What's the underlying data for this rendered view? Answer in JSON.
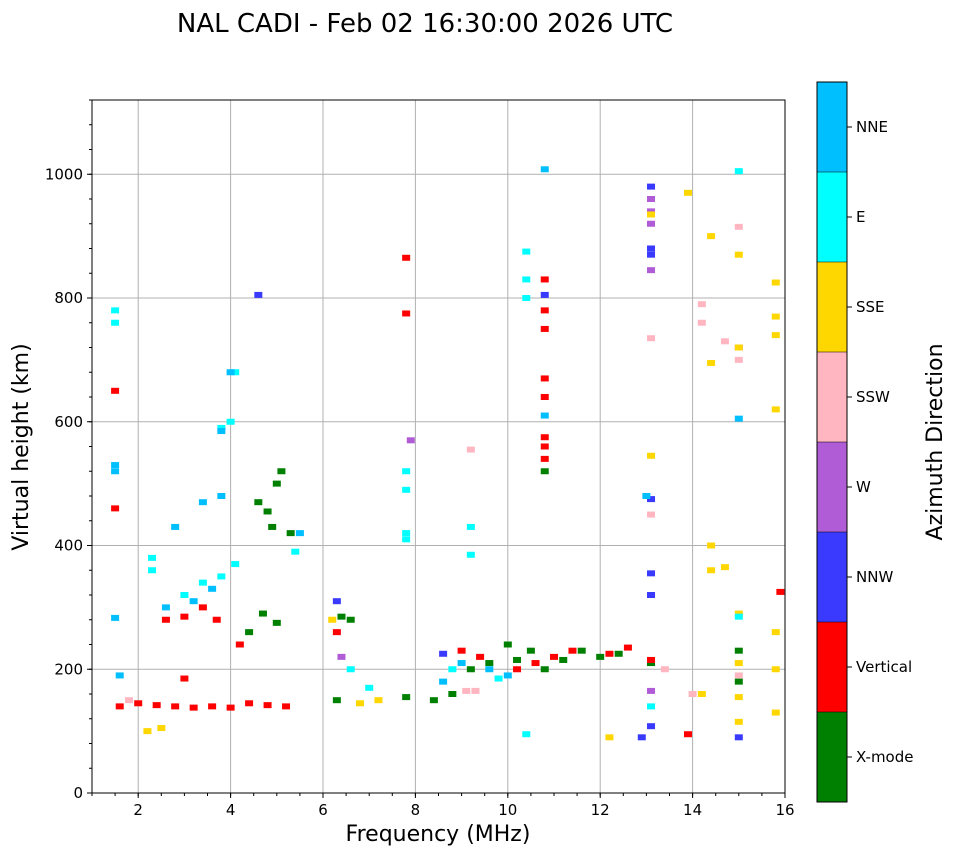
{
  "chart_data": {
    "type": "scatter",
    "title": "NAL CADI - Feb 02 16:30:00 2026 UTC",
    "xlabel": "Frequency (MHz)",
    "ylabel": "Virtual height (km)",
    "xlim": [
      1,
      16
    ],
    "ylim": [
      0,
      1120
    ],
    "xticks": [
      2,
      4,
      6,
      8,
      10,
      12,
      14,
      16
    ],
    "yticks": [
      0,
      200,
      400,
      600,
      800,
      1000
    ],
    "grid": true,
    "colorbar": {
      "label": "Azimuth Direction",
      "placement": "right",
      "categories": [
        {
          "name": "X-mode",
          "color": "#008000"
        },
        {
          "name": "Vertical",
          "color": "#ff0000"
        },
        {
          "name": "NNW",
          "color": "#3a3aff"
        },
        {
          "name": "W",
          "color": "#b05cd6"
        },
        {
          "name": "SSW",
          "color": "#ffb6c1"
        },
        {
          "name": "SSE",
          "color": "#ffd700"
        },
        {
          "name": "E",
          "color": "#00ffff"
        },
        {
          "name": "NNE",
          "color": "#00bfff"
        }
      ]
    },
    "series": [
      {
        "name": "X-mode",
        "points": [
          [
            4.6,
            470
          ],
          [
            4.8,
            455
          ],
          [
            5.0,
            500
          ],
          [
            5.1,
            520
          ],
          [
            5.3,
            420
          ],
          [
            4.9,
            430
          ],
          [
            4.4,
            260
          ],
          [
            4.7,
            290
          ],
          [
            5.0,
            275
          ],
          [
            6.4,
            285
          ],
          [
            6.6,
            280
          ],
          [
            8.4,
            150
          ],
          [
            8.8,
            160
          ],
          [
            9.2,
            200
          ],
          [
            9.6,
            210
          ],
          [
            10.0,
            240
          ],
          [
            10.2,
            215
          ],
          [
            10.5,
            230
          ],
          [
            10.8,
            200
          ],
          [
            11.2,
            215
          ],
          [
            11.6,
            230
          ],
          [
            12.0,
            220
          ],
          [
            12.4,
            225
          ],
          [
            6.3,
            150
          ],
          [
            7.8,
            155
          ],
          [
            10.8,
            520
          ],
          [
            15.0,
            230
          ],
          [
            15.0,
            180
          ],
          [
            13.1,
            210
          ]
        ]
      },
      {
        "name": "Vertical",
        "points": [
          [
            1.6,
            140
          ],
          [
            2.0,
            145
          ],
          [
            2.4,
            142
          ],
          [
            2.8,
            140
          ],
          [
            3.2,
            138
          ],
          [
            3.6,
            140
          ],
          [
            4.0,
            138
          ],
          [
            4.4,
            145
          ],
          [
            4.8,
            142
          ],
          [
            5.2,
            140
          ],
          [
            2.6,
            280
          ],
          [
            3.0,
            285
          ],
          [
            3.4,
            300
          ],
          [
            3.7,
            280
          ],
          [
            4.2,
            240
          ],
          [
            3.0,
            185
          ],
          [
            9.0,
            230
          ],
          [
            9.4,
            220
          ],
          [
            10.2,
            200
          ],
          [
            10.6,
            210
          ],
          [
            11.0,
            220
          ],
          [
            11.4,
            230
          ],
          [
            12.2,
            225
          ],
          [
            12.6,
            235
          ],
          [
            10.8,
            540
          ],
          [
            10.8,
            560
          ],
          [
            10.8,
            575
          ],
          [
            10.8,
            640
          ],
          [
            10.8,
            670
          ],
          [
            10.8,
            750
          ],
          [
            10.8,
            780
          ],
          [
            10.8,
            830
          ],
          [
            7.8,
            865
          ],
          [
            7.8,
            775
          ],
          [
            1.5,
            650
          ],
          [
            1.5,
            460
          ],
          [
            13.1,
            215
          ],
          [
            13.9,
            95
          ],
          [
            15.9,
            325
          ],
          [
            6.3,
            260
          ]
        ]
      },
      {
        "name": "NNW",
        "points": [
          [
            4.6,
            805
          ],
          [
            13.1,
            980
          ],
          [
            13.1,
            880
          ],
          [
            13.1,
            870
          ],
          [
            13.1,
            475
          ],
          [
            13.1,
            355
          ],
          [
            13.1,
            320
          ],
          [
            13.1,
            108
          ],
          [
            12.9,
            90
          ],
          [
            15.0,
            90
          ],
          [
            6.3,
            310
          ],
          [
            10.8,
            805
          ],
          [
            8.6,
            225
          ]
        ]
      },
      {
        "name": "W",
        "points": [
          [
            13.1,
            960
          ],
          [
            13.1,
            940
          ],
          [
            13.1,
            920
          ],
          [
            13.1,
            845
          ],
          [
            7.9,
            570
          ],
          [
            15.0,
            720
          ],
          [
            13.1,
            165
          ],
          [
            6.4,
            220
          ]
        ]
      },
      {
        "name": "SSW",
        "points": [
          [
            9.3,
            165
          ],
          [
            9.1,
            165
          ],
          [
            14.2,
            790
          ],
          [
            14.2,
            760
          ],
          [
            14.7,
            730
          ],
          [
            15.0,
            700
          ],
          [
            15.0,
            915
          ],
          [
            13.1,
            735
          ],
          [
            13.1,
            450
          ],
          [
            9.2,
            555
          ],
          [
            14.0,
            160
          ],
          [
            13.4,
            200
          ],
          [
            15.0,
            190
          ],
          [
            1.8,
            150
          ]
        ]
      },
      {
        "name": "SSE",
        "points": [
          [
            13.9,
            970
          ],
          [
            14.4,
            900
          ],
          [
            15.0,
            870
          ],
          [
            15.0,
            720
          ],
          [
            14.4,
            695
          ],
          [
            15.8,
            825
          ],
          [
            15.8,
            770
          ],
          [
            15.8,
            740
          ],
          [
            15.8,
            620
          ],
          [
            13.1,
            935
          ],
          [
            13.1,
            545
          ],
          [
            14.4,
            400
          ],
          [
            14.4,
            360
          ],
          [
            14.7,
            365
          ],
          [
            15.0,
            290
          ],
          [
            15.0,
            210
          ],
          [
            15.0,
            155
          ],
          [
            15.0,
            115
          ],
          [
            15.8,
            260
          ],
          [
            15.8,
            200
          ],
          [
            15.8,
            130
          ],
          [
            12.2,
            90
          ],
          [
            14.2,
            160
          ],
          [
            2.2,
            100
          ],
          [
            2.5,
            105
          ],
          [
            6.2,
            280
          ],
          [
            7.2,
            150
          ],
          [
            6.8,
            145
          ]
        ]
      },
      {
        "name": "E",
        "points": [
          [
            2.3,
            360
          ],
          [
            2.3,
            380
          ],
          [
            3.0,
            320
          ],
          [
            3.4,
            340
          ],
          [
            3.8,
            350
          ],
          [
            4.1,
            370
          ],
          [
            4.0,
            600
          ],
          [
            3.8,
            590
          ],
          [
            4.1,
            680
          ],
          [
            5.4,
            390
          ],
          [
            7.8,
            520
          ],
          [
            7.8,
            490
          ],
          [
            7.8,
            420
          ],
          [
            7.8,
            410
          ],
          [
            9.2,
            430
          ],
          [
            9.2,
            385
          ],
          [
            10.4,
            875
          ],
          [
            10.4,
            830
          ],
          [
            10.4,
            800
          ],
          [
            10.4,
            95
          ],
          [
            15.0,
            1005
          ],
          [
            6.6,
            200
          ],
          [
            7.0,
            170
          ],
          [
            1.5,
            780
          ],
          [
            1.5,
            760
          ],
          [
            13.1,
            140
          ],
          [
            15.0,
            285
          ],
          [
            8.8,
            200
          ],
          [
            9.8,
            185
          ]
        ]
      },
      {
        "name": "NNE",
        "points": [
          [
            10.8,
            1008
          ],
          [
            10.8,
            610
          ],
          [
            15.0,
            605
          ],
          [
            13.0,
            480
          ],
          [
            3.8,
            585
          ],
          [
            4.0,
            680
          ],
          [
            1.5,
            530
          ],
          [
            1.5,
            520
          ],
          [
            2.6,
            300
          ],
          [
            3.2,
            310
          ],
          [
            3.6,
            330
          ],
          [
            2.8,
            430
          ],
          [
            3.4,
            470
          ],
          [
            3.8,
            480
          ],
          [
            5.5,
            420
          ],
          [
            9.0,
            210
          ],
          [
            9.6,
            200
          ],
          [
            8.6,
            180
          ],
          [
            10.0,
            190
          ],
          [
            1.5,
            283
          ],
          [
            1.6,
            190
          ]
        ]
      }
    ]
  }
}
